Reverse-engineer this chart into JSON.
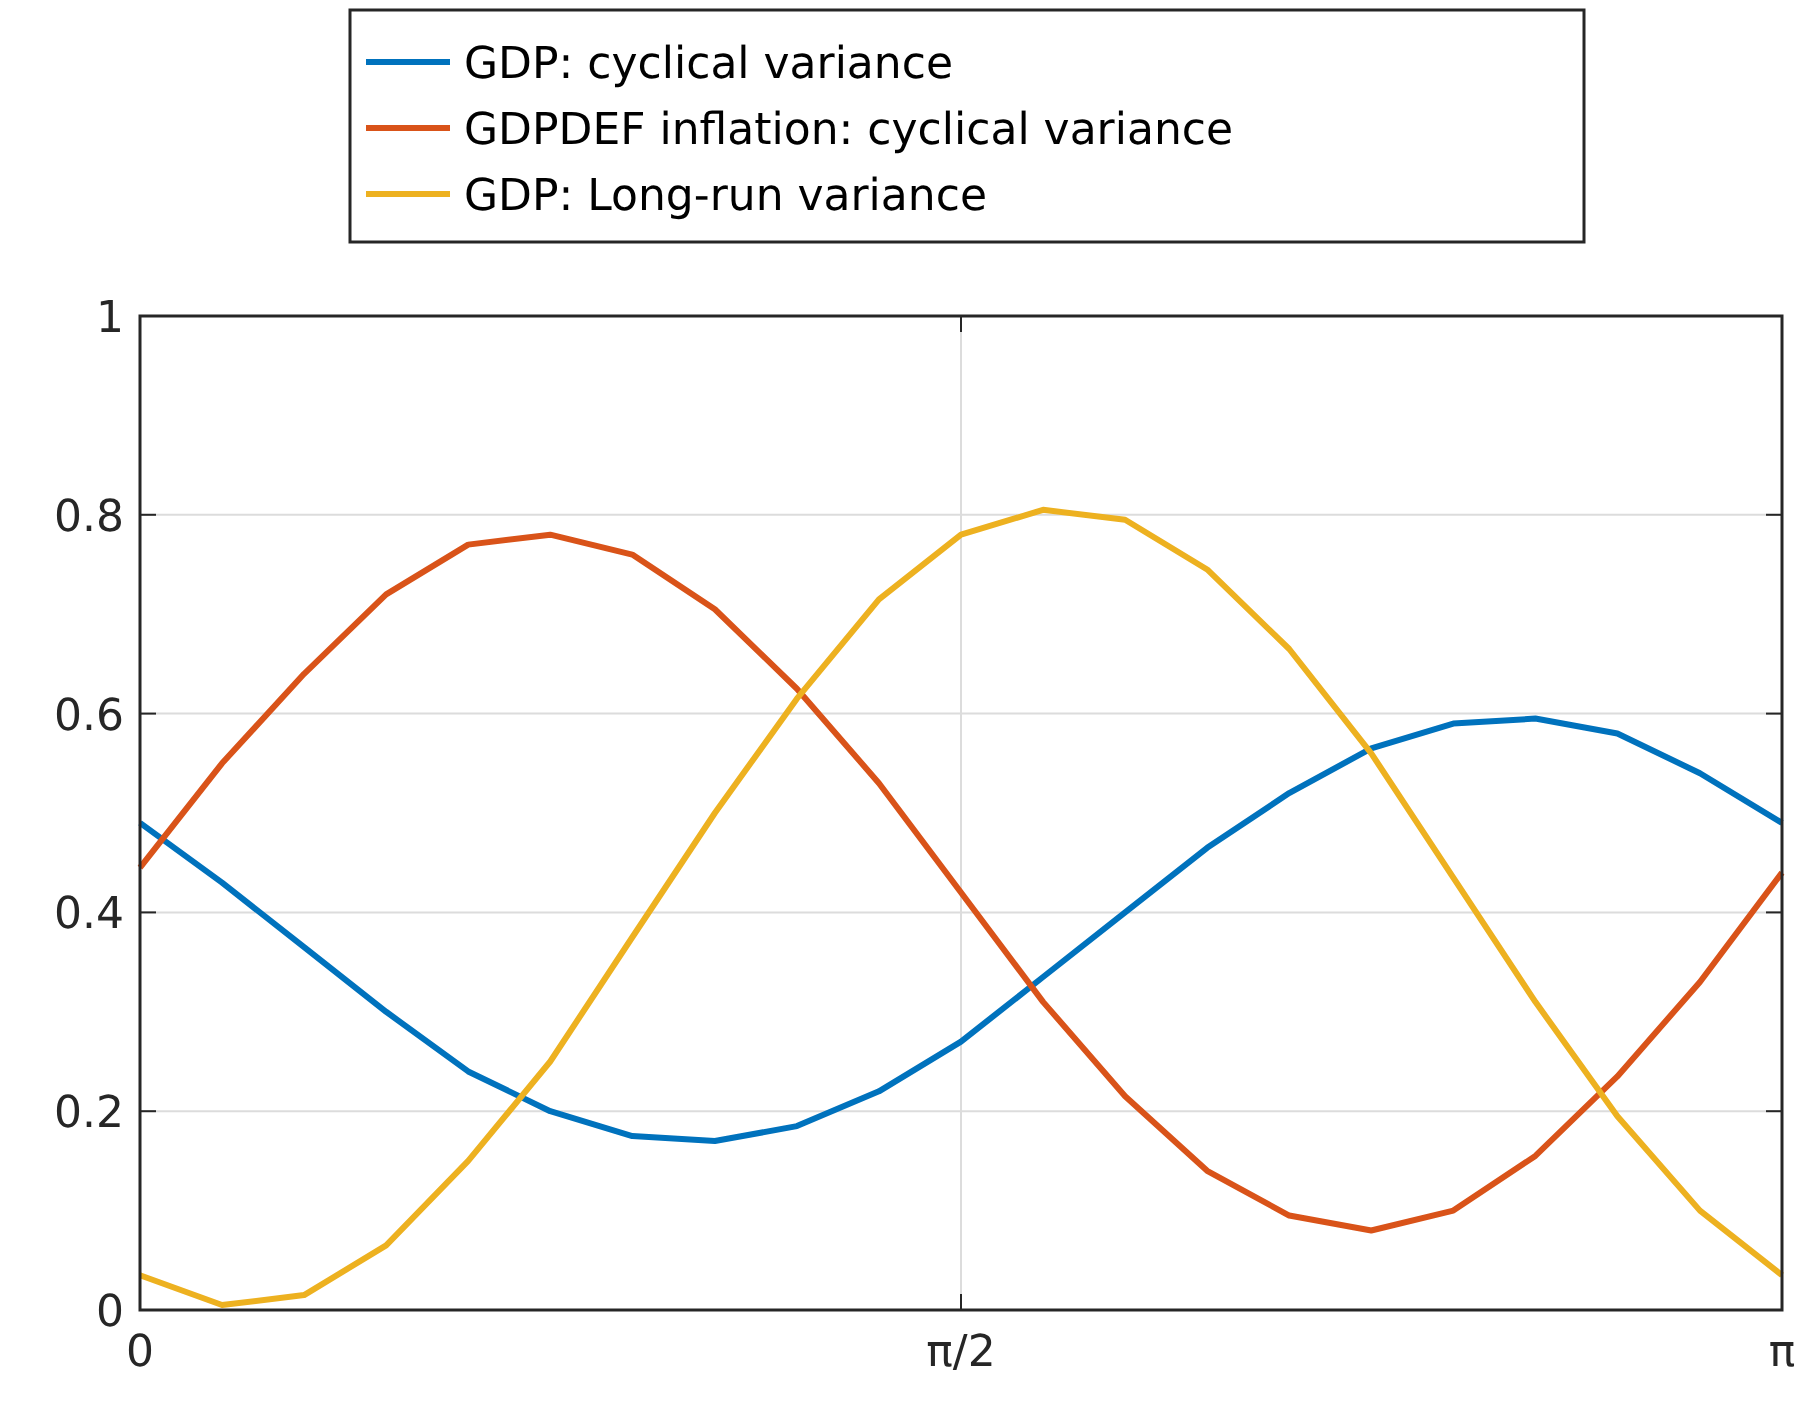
{
  "chart_data": {
    "type": "line",
    "x": [
      0,
      0.157,
      0.314,
      0.471,
      0.628,
      0.785,
      0.942,
      1.1,
      1.257,
      1.414,
      1.571,
      1.728,
      1.885,
      2.042,
      2.199,
      2.356,
      2.513,
      2.67,
      2.827,
      2.985,
      3.142
    ],
    "series": [
      {
        "name": "GDP: cyclical variance",
        "color": "#0072bd",
        "values": [
          0.49,
          0.43,
          0.365,
          0.3,
          0.24,
          0.2,
          0.175,
          0.17,
          0.185,
          0.22,
          0.27,
          0.335,
          0.4,
          0.465,
          0.52,
          0.565,
          0.59,
          0.595,
          0.58,
          0.54,
          0.49
        ]
      },
      {
        "name": "GDPDEF inflation: cyclical variance",
        "color": "#d95319",
        "values": [
          0.445,
          0.55,
          0.64,
          0.72,
          0.77,
          0.78,
          0.76,
          0.705,
          0.625,
          0.53,
          0.42,
          0.31,
          0.215,
          0.14,
          0.095,
          0.08,
          0.1,
          0.155,
          0.235,
          0.33,
          0.44
        ]
      },
      {
        "name": "GDP: Long-run variance",
        "color": "#edb120",
        "values": [
          0.035,
          0.005,
          0.015,
          0.065,
          0.15,
          0.25,
          0.375,
          0.5,
          0.615,
          0.715,
          0.78,
          0.805,
          0.795,
          0.745,
          0.665,
          0.56,
          0.435,
          0.31,
          0.195,
          0.1,
          0.035
        ]
      }
    ],
    "xlim": [
      0,
      3.142
    ],
    "xticks": [
      {
        "value": 0,
        "label": "0"
      },
      {
        "value": 1.571,
        "label": "π/2"
      },
      {
        "value": 3.142,
        "label": "π"
      }
    ],
    "ylim": [
      0,
      1
    ],
    "yticks": [
      0,
      0.2,
      0.4,
      0.6,
      0.8,
      1
    ],
    "grid": true,
    "legend": "top"
  }
}
